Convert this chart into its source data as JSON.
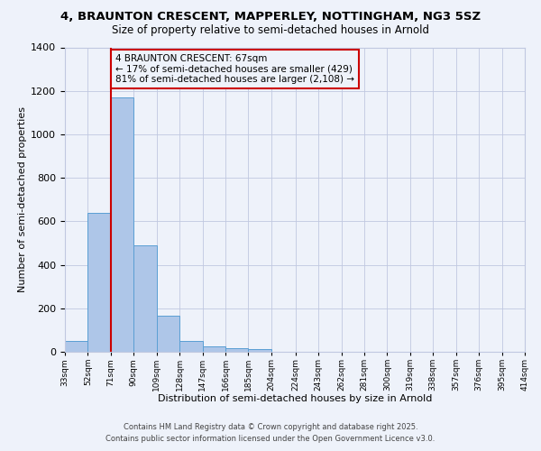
{
  "title": "4, BRAUNTON CRESCENT, MAPPERLEY, NOTTINGHAM, NG3 5SZ",
  "subtitle": "Size of property relative to semi-detached houses in Arnold",
  "xlabel": "Distribution of semi-detached houses by size in Arnold",
  "ylabel": "Number of semi-detached properties",
  "bin_labels": [
    "33sqm",
    "52sqm",
    "71sqm",
    "90sqm",
    "109sqm",
    "128sqm",
    "147sqm",
    "166sqm",
    "185sqm",
    "204sqm",
    "224sqm",
    "243sqm",
    "262sqm",
    "281sqm",
    "300sqm",
    "319sqm",
    "338sqm",
    "357sqm",
    "376sqm",
    "395sqm",
    "414sqm"
  ],
  "bin_edges": [
    33,
    52,
    71,
    90,
    109,
    128,
    147,
    166,
    185,
    204,
    224,
    243,
    262,
    281,
    300,
    319,
    338,
    357,
    376,
    395,
    414
  ],
  "bar_heights": [
    50,
    640,
    1170,
    490,
    165,
    50,
    25,
    18,
    12,
    0,
    0,
    0,
    0,
    0,
    0,
    0,
    0,
    0,
    0,
    0
  ],
  "bar_color": "#aec6e8",
  "bar_edge_color": "#5a9fd4",
  "property_line_x": 71,
  "property_line_color": "#cc0000",
  "annotation_text": "4 BRAUNTON CRESCENT: 67sqm\n← 17% of semi-detached houses are smaller (429)\n81% of semi-detached houses are larger (2,108) →",
  "annotation_box_color": "#cc0000",
  "ylim": [
    0,
    1400
  ],
  "yticks": [
    0,
    200,
    400,
    600,
    800,
    1000,
    1200,
    1400
  ],
  "footer_line1": "Contains HM Land Registry data © Crown copyright and database right 2025.",
  "footer_line2": "Contains public sector information licensed under the Open Government Licence v3.0.",
  "background_color": "#eef2fa",
  "grid_color": "#c0c8e0"
}
